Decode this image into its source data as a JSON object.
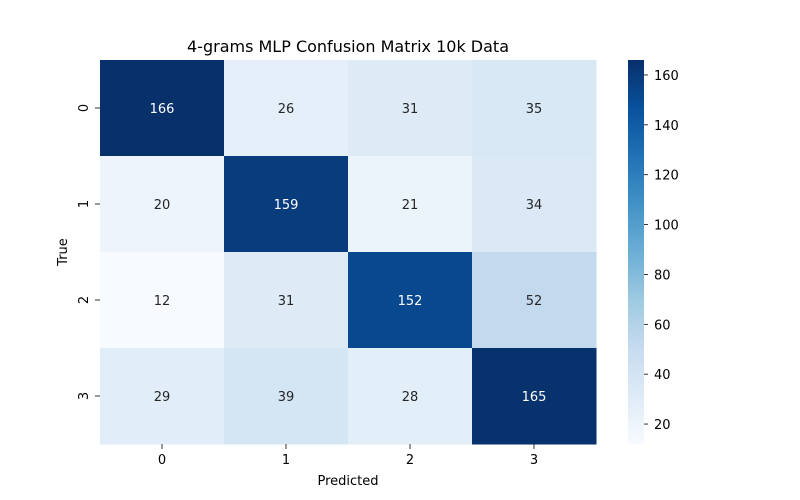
{
  "chart_data": {
    "type": "heatmap",
    "title": "4-grams MLP Confusion Matrix 10k Data",
    "xlabel": "Predicted",
    "ylabel": "True",
    "x_categories": [
      "0",
      "1",
      "2",
      "3"
    ],
    "y_categories": [
      "0",
      "1",
      "2",
      "3"
    ],
    "values": [
      [
        166,
        26,
        31,
        35
      ],
      [
        20,
        159,
        21,
        34
      ],
      [
        12,
        31,
        152,
        52
      ],
      [
        29,
        39,
        28,
        165
      ]
    ],
    "colormap": "Blues",
    "vmin": 12,
    "vmax": 166,
    "colorbar_ticks": [
      20,
      40,
      60,
      80,
      100,
      120,
      140,
      160
    ]
  }
}
